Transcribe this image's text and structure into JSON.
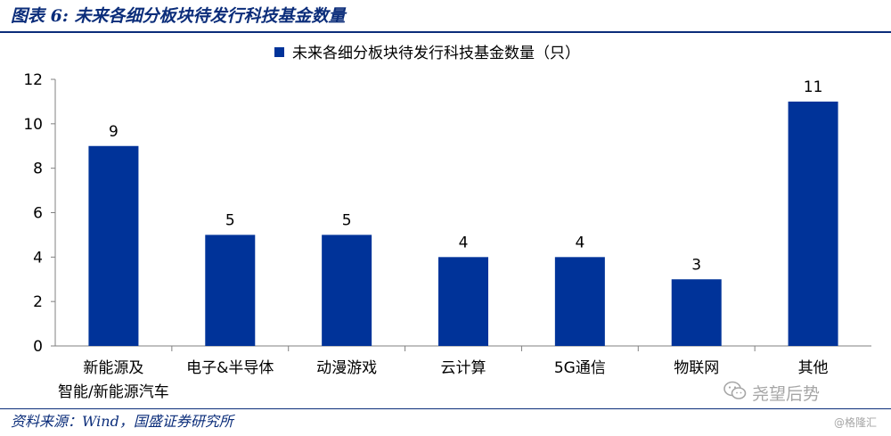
{
  "figure": {
    "title": "图表 6:  未来各细分板块待发行科技基金数量",
    "source": "资料来源：Wind，国盛证券研究所"
  },
  "watermark": {
    "brand": "尧望后势",
    "credit": "@格隆汇"
  },
  "colors": {
    "bar": "#003399",
    "header": "#0b2d7a"
  },
  "chart_data": {
    "type": "bar",
    "categories": [
      [
        "新能源及",
        "智能/新能源汽车"
      ],
      [
        "电子&半导体"
      ],
      [
        "动漫游戏"
      ],
      [
        "云计算"
      ],
      [
        "5G通信"
      ],
      [
        "物联网"
      ],
      [
        "其他"
      ]
    ],
    "series": [
      {
        "name": "未来各细分板块待发行科技基金数量（只）",
        "values": [
          9,
          5,
          5,
          4,
          4,
          3,
          11
        ]
      }
    ],
    "ylim": [
      0,
      12
    ],
    "yticks": [
      0,
      2,
      4,
      6,
      8,
      10,
      12
    ],
    "data_labels": true,
    "legend_position": "top-center",
    "grid": false
  }
}
